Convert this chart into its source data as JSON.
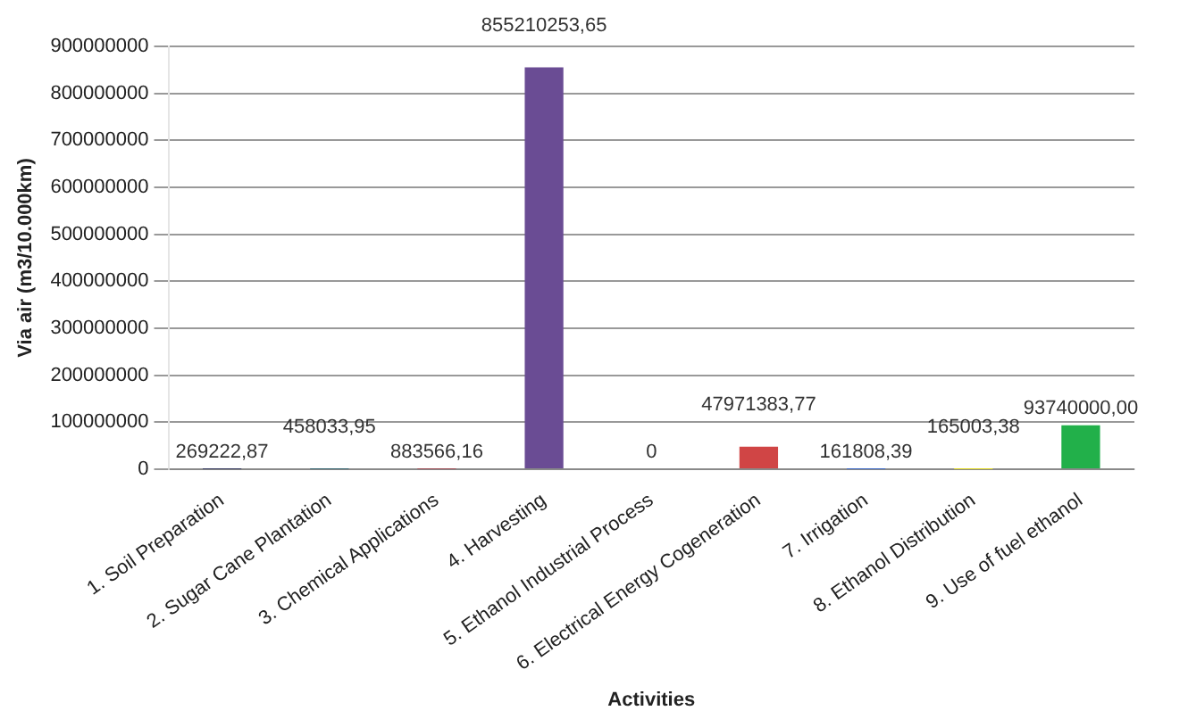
{
  "chart_data": {
    "type": "bar",
    "ylabel": "Via air (m3/10.000km)",
    "xlabel": "Activities",
    "categories": [
      "1. Soil Preparation",
      "2. Sugar Cane Plantation",
      "3. Chemical Applications",
      "4. Harvesting",
      "5. Ethanol Industrial Process",
      "6. Electrical Energy Cogeneration",
      "7. Irrigation",
      "8. Ethanol Distribution",
      "9. Use of fuel ethanol"
    ],
    "values": [
      269222.87,
      458033.95,
      883566.16,
      855210253.65,
      0,
      47971383.77,
      161808.39,
      165003.38,
      93740000.0
    ],
    "colors": [
      "#1a2050",
      "#1d5a6a",
      "#b01020",
      "#6a4c94",
      "#7d7a3a",
      "#d04545",
      "#3a66c4",
      "#e0d820",
      "#22b04a"
    ],
    "value_labels": [
      "269222,87",
      "458033,95",
      "883566,16",
      "855210253,65",
      "0",
      "47971383,77",
      "161808,39",
      "165003,38",
      "93740000,00"
    ],
    "ylim": [
      0,
      900000000
    ],
    "yticks": [
      0,
      100000000,
      200000000,
      300000000,
      400000000,
      500000000,
      600000000,
      700000000,
      800000000,
      900000000
    ],
    "grid": "y"
  }
}
